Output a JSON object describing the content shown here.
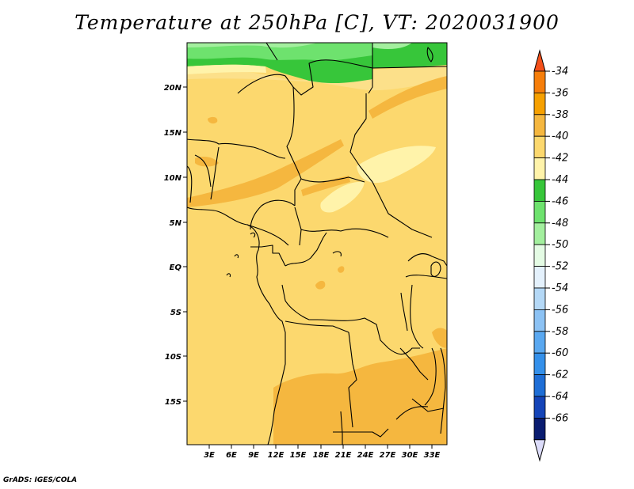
{
  "title": "Temperature at 250hPa [C], VT: 2020031900",
  "credit": "GrADS: IGES/COLA",
  "map": {
    "lon_labels": [
      "3E",
      "6E",
      "9E",
      "12E",
      "15E",
      "18E",
      "21E",
      "24E",
      "27E",
      "30E",
      "33E"
    ],
    "lat_labels": [
      "20N",
      "15N",
      "10N",
      "5N",
      "EQ",
      "5S",
      "10S",
      "15S"
    ]
  },
  "colorbar": {
    "labels": [
      "-34",
      "-36",
      "-38",
      "-40",
      "-42",
      "-44",
      "-46",
      "-48",
      "-50",
      "-52",
      "-54",
      "-56",
      "-58",
      "-60",
      "-62",
      "-64",
      "-66"
    ],
    "colors": [
      "#f4501a",
      "#f67e0a",
      "#f6a000",
      "#f5b73f",
      "#fcd86e",
      "#fff3aa",
      "#37c63a",
      "#6ee26e",
      "#a3ef9e",
      "#e4fbe4",
      "#e4f1fc",
      "#b4d8f6",
      "#8cc2f4",
      "#5aa8f0",
      "#3490ea",
      "#1e6ed6",
      "#1444b8",
      "#0a1c70"
    ],
    "under_color": "#dcdcfa"
  }
}
